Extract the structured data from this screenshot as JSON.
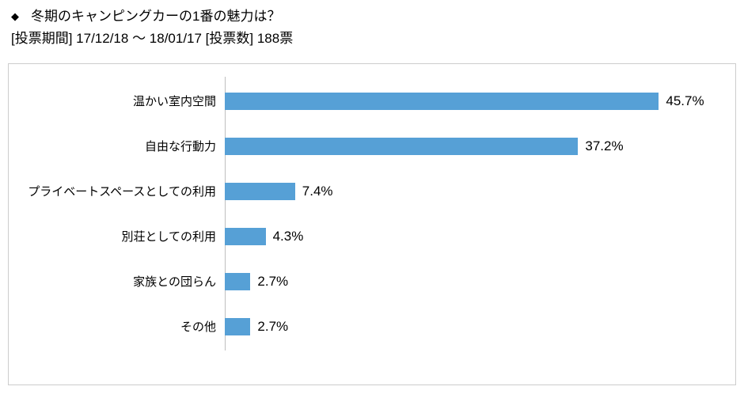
{
  "header": {
    "bullet": "◆"
  },
  "chart_data": {
    "type": "bar",
    "orientation": "horizontal",
    "title": "冬期のキャンピングカーの1番の魅力は？",
    "subtitle": "[投票期間] 17/12/18 ～ 18/01/17 [投票数] 188票",
    "categories": [
      "温かい室内空間",
      "自由な行動力",
      "プライベートスペースとしての利用",
      "別荘としての利用",
      "家族との団らん",
      "その他"
    ],
    "values": [
      45.7,
      37.2,
      7.4,
      4.3,
      2.7,
      2.7
    ],
    "value_labels": [
      "45.7%",
      "37.2%",
      "7.4%",
      "4.3%",
      "2.7%",
      "2.7%"
    ],
    "bar_color": "#56a0d6",
    "axis_color": "#bfbfbf",
    "grid": false,
    "legend": false
  }
}
